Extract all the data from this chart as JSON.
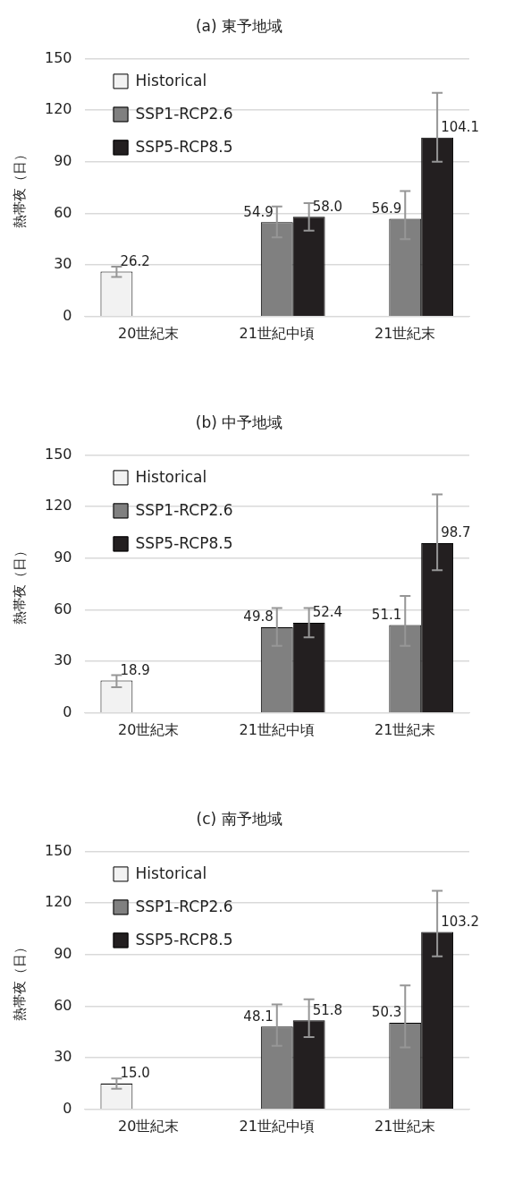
{
  "chart_data": [
    {
      "type": "bar",
      "title": "(a) 東予地域",
      "ylabel": "熱帯夜（日）",
      "categories": [
        "20世紀末",
        "21世紀中頃",
        "21世紀末"
      ],
      "ylim": [
        0,
        150
      ],
      "yticks": [
        0,
        30,
        60,
        90,
        120,
        150
      ],
      "grid": "y",
      "legend": "top left",
      "series": [
        {
          "name": "Historical",
          "color": "#f2f2f2",
          "values": [
            26.2,
            null,
            null
          ],
          "value_labels": [
            "26.2",
            null,
            null
          ],
          "errors": [
            [
              23,
              29
            ],
            null,
            null
          ]
        },
        {
          "name": "SSP1-RCP2.6",
          "color": "#808080",
          "values": [
            null,
            54.9,
            56.9
          ],
          "value_labels": [
            null,
            "54.9",
            "56.9"
          ],
          "errors": [
            null,
            [
              46,
              64
            ],
            [
              45,
              73
            ]
          ]
        },
        {
          "name": "SSP5-RCP8.5",
          "color": "#231f20",
          "values": [
            null,
            58.0,
            104.1
          ],
          "value_labels": [
            null,
            "58.0",
            "104.1"
          ],
          "errors": [
            null,
            [
              50,
              66
            ],
            [
              90,
              130
            ]
          ]
        }
      ]
    },
    {
      "type": "bar",
      "title": "(b) 中予地域",
      "ylabel": "熱帯夜（日）",
      "categories": [
        "20世紀末",
        "21世紀中頃",
        "21世紀末"
      ],
      "ylim": [
        0,
        150
      ],
      "yticks": [
        0,
        30,
        60,
        90,
        120,
        150
      ],
      "grid": "y",
      "legend": "top left",
      "series": [
        {
          "name": "Historical",
          "color": "#f2f2f2",
          "values": [
            18.9,
            null,
            null
          ],
          "value_labels": [
            "18.9",
            null,
            null
          ],
          "errors": [
            [
              15,
              22
            ],
            null,
            null
          ]
        },
        {
          "name": "SSP1-RCP2.6",
          "color": "#808080",
          "values": [
            null,
            49.8,
            51.1
          ],
          "value_labels": [
            null,
            "49.8",
            "51.1"
          ],
          "errors": [
            null,
            [
              39,
              61
            ],
            [
              39,
              68
            ]
          ]
        },
        {
          "name": "SSP5-RCP8.5",
          "color": "#231f20",
          "values": [
            null,
            52.4,
            98.7
          ],
          "value_labels": [
            null,
            "52.4",
            "98.7"
          ],
          "errors": [
            null,
            [
              44,
              61
            ],
            [
              83,
              127
            ]
          ]
        }
      ]
    },
    {
      "type": "bar",
      "title": "(c) 南予地域",
      "ylabel": "熱帯夜（日）",
      "categories": [
        "20世紀末",
        "21世紀中頃",
        "21世紀末"
      ],
      "ylim": [
        0,
        150
      ],
      "yticks": [
        0,
        30,
        60,
        90,
        120,
        150
      ],
      "grid": "y",
      "legend": "top left",
      "series": [
        {
          "name": "Historical",
          "color": "#f2f2f2",
          "values": [
            15.0,
            null,
            null
          ],
          "value_labels": [
            "15.0",
            null,
            null
          ],
          "errors": [
            [
              12,
              18
            ],
            null,
            null
          ]
        },
        {
          "name": "SSP1-RCP2.6",
          "color": "#808080",
          "values": [
            null,
            48.1,
            50.3
          ],
          "value_labels": [
            null,
            "48.1",
            "50.3"
          ],
          "errors": [
            null,
            [
              37,
              61
            ],
            [
              36,
              72
            ]
          ]
        },
        {
          "name": "SSP5-RCP8.5",
          "color": "#231f20",
          "values": [
            null,
            51.8,
            103.2
          ],
          "value_labels": [
            null,
            "51.8",
            "103.2"
          ],
          "errors": [
            null,
            [
              42,
              64
            ],
            [
              89,
              127
            ]
          ]
        }
      ]
    }
  ]
}
